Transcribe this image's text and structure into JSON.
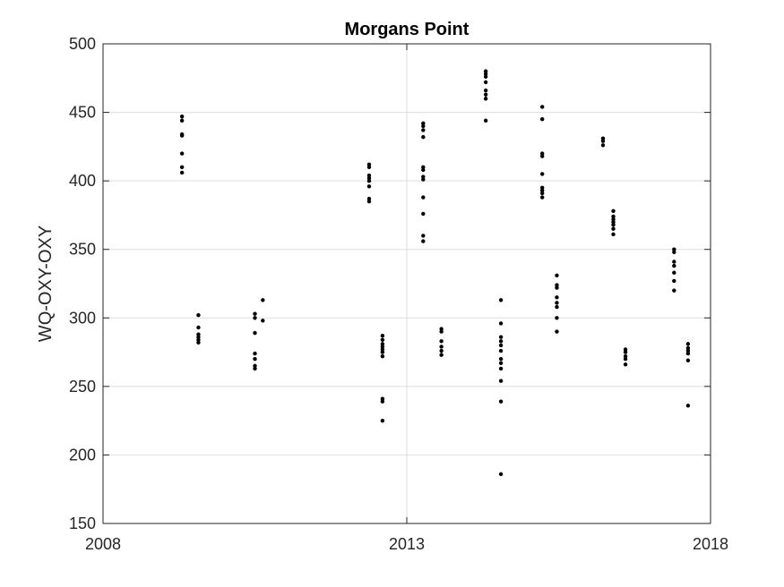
{
  "chart_data": {
    "type": "scatter",
    "title": "Morgans Point",
    "xlabel": "",
    "ylabel": "WQ-OXY-OXY",
    "xlim": [
      2008,
      2018
    ],
    "ylim": [
      150,
      500
    ],
    "xticks": [
      2008,
      2013,
      2018
    ],
    "yticks": [
      150,
      200,
      250,
      300,
      350,
      400,
      450,
      500
    ],
    "grid": true,
    "marker_color": "#000000",
    "series": [
      {
        "points": [
          {
            "x": 2009.3,
            "y": 447
          },
          {
            "x": 2009.3,
            "y": 444
          },
          {
            "x": 2009.3,
            "y": 434
          },
          {
            "x": 2009.3,
            "y": 433
          },
          {
            "x": 2009.3,
            "y": 420
          },
          {
            "x": 2009.3,
            "y": 410
          },
          {
            "x": 2009.3,
            "y": 406
          },
          {
            "x": 2009.57,
            "y": 302
          },
          {
            "x": 2009.57,
            "y": 293
          },
          {
            "x": 2009.57,
            "y": 288
          },
          {
            "x": 2009.57,
            "y": 286
          },
          {
            "x": 2009.57,
            "y": 284
          },
          {
            "x": 2009.57,
            "y": 282
          },
          {
            "x": 2010.5,
            "y": 303
          },
          {
            "x": 2010.5,
            "y": 300
          },
          {
            "x": 2010.5,
            "y": 289
          },
          {
            "x": 2010.5,
            "y": 274
          },
          {
            "x": 2010.5,
            "y": 270
          },
          {
            "x": 2010.5,
            "y": 265
          },
          {
            "x": 2010.5,
            "y": 263
          },
          {
            "x": 2010.63,
            "y": 313
          },
          {
            "x": 2010.63,
            "y": 298
          },
          {
            "x": 2012.38,
            "y": 412
          },
          {
            "x": 2012.38,
            "y": 410
          },
          {
            "x": 2012.38,
            "y": 404
          },
          {
            "x": 2012.38,
            "y": 402
          },
          {
            "x": 2012.38,
            "y": 400
          },
          {
            "x": 2012.38,
            "y": 396
          },
          {
            "x": 2012.38,
            "y": 387
          },
          {
            "x": 2012.38,
            "y": 385
          },
          {
            "x": 2012.6,
            "y": 287
          },
          {
            "x": 2012.6,
            "y": 284
          },
          {
            "x": 2012.6,
            "y": 281
          },
          {
            "x": 2012.6,
            "y": 279
          },
          {
            "x": 2012.6,
            "y": 277
          },
          {
            "x": 2012.6,
            "y": 275
          },
          {
            "x": 2012.6,
            "y": 272
          },
          {
            "x": 2012.6,
            "y": 241
          },
          {
            "x": 2012.6,
            "y": 239
          },
          {
            "x": 2012.6,
            "y": 225
          },
          {
            "x": 2013.27,
            "y": 442
          },
          {
            "x": 2013.27,
            "y": 440
          },
          {
            "x": 2013.27,
            "y": 437
          },
          {
            "x": 2013.27,
            "y": 432
          },
          {
            "x": 2013.27,
            "y": 410
          },
          {
            "x": 2013.27,
            "y": 408
          },
          {
            "x": 2013.27,
            "y": 403
          },
          {
            "x": 2013.27,
            "y": 401
          },
          {
            "x": 2013.27,
            "y": 388
          },
          {
            "x": 2013.27,
            "y": 376
          },
          {
            "x": 2013.27,
            "y": 360
          },
          {
            "x": 2013.27,
            "y": 356
          },
          {
            "x": 2013.57,
            "y": 292
          },
          {
            "x": 2013.57,
            "y": 290
          },
          {
            "x": 2013.57,
            "y": 283
          },
          {
            "x": 2013.57,
            "y": 279
          },
          {
            "x": 2013.57,
            "y": 276
          },
          {
            "x": 2013.57,
            "y": 273
          },
          {
            "x": 2014.3,
            "y": 480
          },
          {
            "x": 2014.3,
            "y": 478
          },
          {
            "x": 2014.3,
            "y": 476
          },
          {
            "x": 2014.3,
            "y": 472
          },
          {
            "x": 2014.3,
            "y": 466
          },
          {
            "x": 2014.3,
            "y": 463
          },
          {
            "x": 2014.3,
            "y": 460
          },
          {
            "x": 2014.3,
            "y": 444
          },
          {
            "x": 2014.55,
            "y": 313
          },
          {
            "x": 2014.55,
            "y": 296
          },
          {
            "x": 2014.55,
            "y": 286
          },
          {
            "x": 2014.55,
            "y": 283
          },
          {
            "x": 2014.55,
            "y": 280
          },
          {
            "x": 2014.55,
            "y": 276
          },
          {
            "x": 2014.55,
            "y": 270
          },
          {
            "x": 2014.55,
            "y": 267
          },
          {
            "x": 2014.55,
            "y": 263
          },
          {
            "x": 2014.55,
            "y": 254
          },
          {
            "x": 2014.55,
            "y": 239
          },
          {
            "x": 2014.55,
            "y": 186
          },
          {
            "x": 2015.23,
            "y": 454
          },
          {
            "x": 2015.23,
            "y": 445
          },
          {
            "x": 2015.23,
            "y": 420
          },
          {
            "x": 2015.23,
            "y": 418
          },
          {
            "x": 2015.23,
            "y": 405
          },
          {
            "x": 2015.23,
            "y": 395
          },
          {
            "x": 2015.23,
            "y": 393
          },
          {
            "x": 2015.23,
            "y": 391
          },
          {
            "x": 2015.23,
            "y": 388
          },
          {
            "x": 2015.47,
            "y": 331
          },
          {
            "x": 2015.47,
            "y": 324
          },
          {
            "x": 2015.47,
            "y": 322
          },
          {
            "x": 2015.47,
            "y": 315
          },
          {
            "x": 2015.47,
            "y": 311
          },
          {
            "x": 2015.47,
            "y": 308
          },
          {
            "x": 2015.47,
            "y": 300
          },
          {
            "x": 2015.47,
            "y": 290
          },
          {
            "x": 2016.23,
            "y": 431
          },
          {
            "x": 2016.23,
            "y": 429
          },
          {
            "x": 2016.23,
            "y": 426
          },
          {
            "x": 2016.4,
            "y": 378
          },
          {
            "x": 2016.4,
            "y": 374
          },
          {
            "x": 2016.4,
            "y": 372
          },
          {
            "x": 2016.4,
            "y": 370
          },
          {
            "x": 2016.4,
            "y": 368
          },
          {
            "x": 2016.4,
            "y": 365
          },
          {
            "x": 2016.4,
            "y": 361
          },
          {
            "x": 2016.6,
            "y": 277
          },
          {
            "x": 2016.6,
            "y": 275
          },
          {
            "x": 2016.6,
            "y": 272
          },
          {
            "x": 2016.6,
            "y": 270
          },
          {
            "x": 2016.6,
            "y": 266
          },
          {
            "x": 2017.4,
            "y": 350
          },
          {
            "x": 2017.4,
            "y": 348
          },
          {
            "x": 2017.4,
            "y": 341
          },
          {
            "x": 2017.4,
            "y": 338
          },
          {
            "x": 2017.4,
            "y": 333
          },
          {
            "x": 2017.4,
            "y": 327
          },
          {
            "x": 2017.4,
            "y": 320
          },
          {
            "x": 2017.63,
            "y": 281
          },
          {
            "x": 2017.63,
            "y": 278
          },
          {
            "x": 2017.63,
            "y": 276
          },
          {
            "x": 2017.63,
            "y": 274
          },
          {
            "x": 2017.63,
            "y": 269
          },
          {
            "x": 2017.63,
            "y": 236
          }
        ]
      }
    ]
  }
}
